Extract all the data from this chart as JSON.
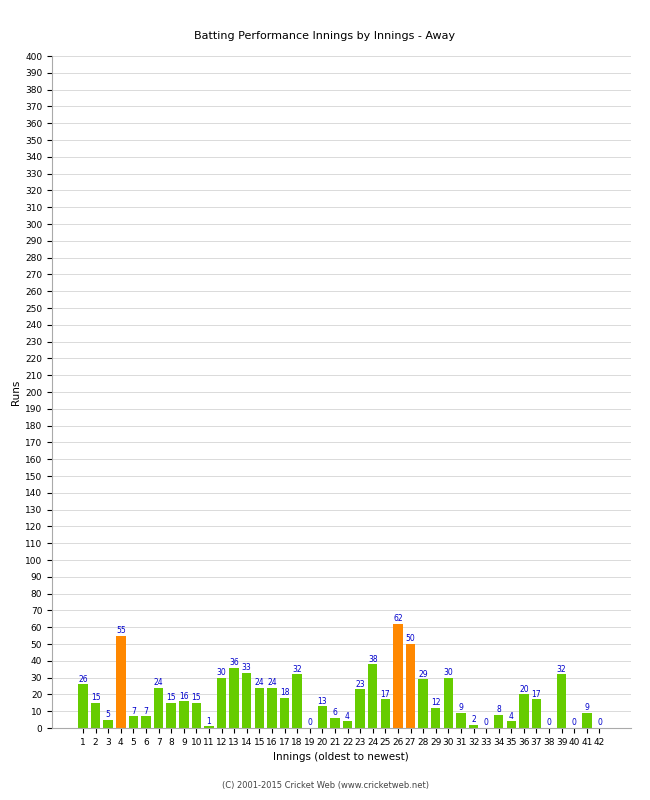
{
  "title": "Batting Performance Innings by Innings - Away",
  "xlabel": "Innings (oldest to newest)",
  "ylabel": "Runs",
  "footer": "(C) 2001-2015 Cricket Web (www.cricketweb.net)",
  "ylim": [
    0,
    400
  ],
  "background_color": "#ffffff",
  "grid_color": "#cccccc",
  "innings": [
    1,
    2,
    3,
    4,
    5,
    6,
    7,
    8,
    9,
    10,
    11,
    12,
    13,
    14,
    15,
    16,
    17,
    18,
    19,
    20,
    21,
    22,
    23,
    24,
    25,
    26,
    27,
    28,
    29,
    30,
    31,
    32,
    33,
    34,
    35,
    36,
    37,
    38,
    39,
    40,
    41,
    42
  ],
  "values": [
    26,
    15,
    5,
    55,
    7,
    7,
    24,
    15,
    16,
    15,
    1,
    30,
    36,
    33,
    24,
    24,
    18,
    32,
    0,
    13,
    6,
    4,
    23,
    38,
    17,
    62,
    50,
    29,
    12,
    30,
    9,
    2,
    0,
    8,
    4,
    20,
    17,
    0,
    32,
    0,
    9,
    0
  ],
  "bar_colors": [
    "#66cc00",
    "#66cc00",
    "#66cc00",
    "#ff8800",
    "#66cc00",
    "#66cc00",
    "#66cc00",
    "#66cc00",
    "#66cc00",
    "#66cc00",
    "#66cc00",
    "#66cc00",
    "#66cc00",
    "#66cc00",
    "#66cc00",
    "#66cc00",
    "#66cc00",
    "#66cc00",
    "#66cc00",
    "#66cc00",
    "#66cc00",
    "#66cc00",
    "#66cc00",
    "#66cc00",
    "#66cc00",
    "#ff8800",
    "#ff8800",
    "#66cc00",
    "#66cc00",
    "#66cc00",
    "#66cc00",
    "#66cc00",
    "#66cc00",
    "#66cc00",
    "#66cc00",
    "#66cc00",
    "#66cc00",
    "#66cc00",
    "#66cc00",
    "#66cc00",
    "#66cc00",
    "#66cc00"
  ],
  "label_color": "#0000cc",
  "label_fontsize": 5.5,
  "tick_fontsize": 6.5,
  "axis_label_fontsize": 7.5,
  "title_fontsize": 8,
  "footer_fontsize": 6
}
